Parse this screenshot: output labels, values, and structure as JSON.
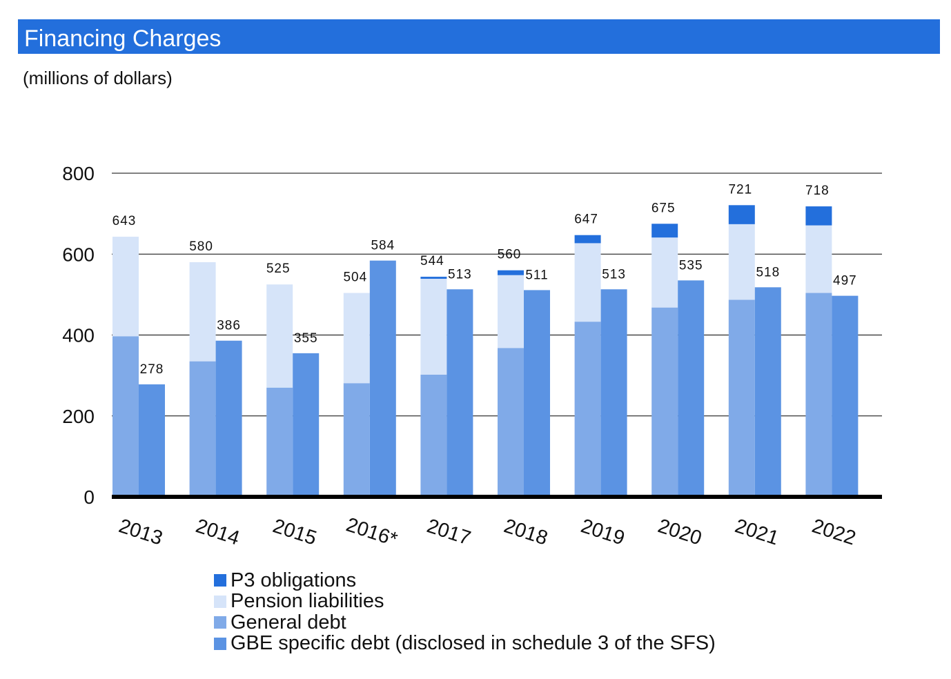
{
  "header": {
    "title": "Financing Charges",
    "subtitle": "(millions of dollars)"
  },
  "chart_data": {
    "type": "bar",
    "categories": [
      "2013",
      "2014",
      "2015",
      "2016*",
      "2017",
      "2018",
      "2019",
      "2020",
      "2021",
      "2022"
    ],
    "series": [
      {
        "name": "General debt",
        "stack": "core",
        "color": "#80aae8",
        "values": [
          397,
          335,
          270,
          281,
          302,
          368,
          433,
          468,
          487,
          504
        ]
      },
      {
        "name": "Pension liabilities",
        "stack": "core",
        "color": "#d6e4f9",
        "values": [
          246,
          245,
          255,
          223,
          237,
          180,
          194,
          173,
          187,
          167
        ]
      },
      {
        "name": "P3 obligations",
        "stack": "core",
        "color": "#236fdc",
        "values": [
          0,
          0,
          0,
          0,
          5,
          12,
          20,
          34,
          47,
          47
        ]
      },
      {
        "name": "GBE specific debt (disclosed in schedule 3 of the SFS)",
        "stack": "gbe",
        "color": "#5b93e3",
        "values": [
          278,
          386,
          355,
          584,
          513,
          511,
          513,
          535,
          518,
          497
        ]
      }
    ],
    "totals_core": [
      643,
      580,
      525,
      504,
      544,
      560,
      647,
      675,
      721,
      718
    ],
    "totals_gbe": [
      278,
      386,
      355,
      584,
      513,
      511,
      513,
      535,
      518,
      497
    ],
    "y_ticks": [
      "0",
      "200",
      "400",
      "600",
      "800"
    ],
    "ylim": [
      0,
      800
    ],
    "grid": true,
    "legend_position": "bottom"
  },
  "legend": {
    "items": [
      {
        "label": "P3 obligations",
        "color": "#236fdc"
      },
      {
        "label": "Pension liabilities",
        "color": "#d6e4f9"
      },
      {
        "label": "General debt",
        "color": "#80aae8"
      },
      {
        "label": "GBE specific debt (disclosed in schedule 3 of the SFS)",
        "color": "#5b93e3"
      }
    ]
  }
}
